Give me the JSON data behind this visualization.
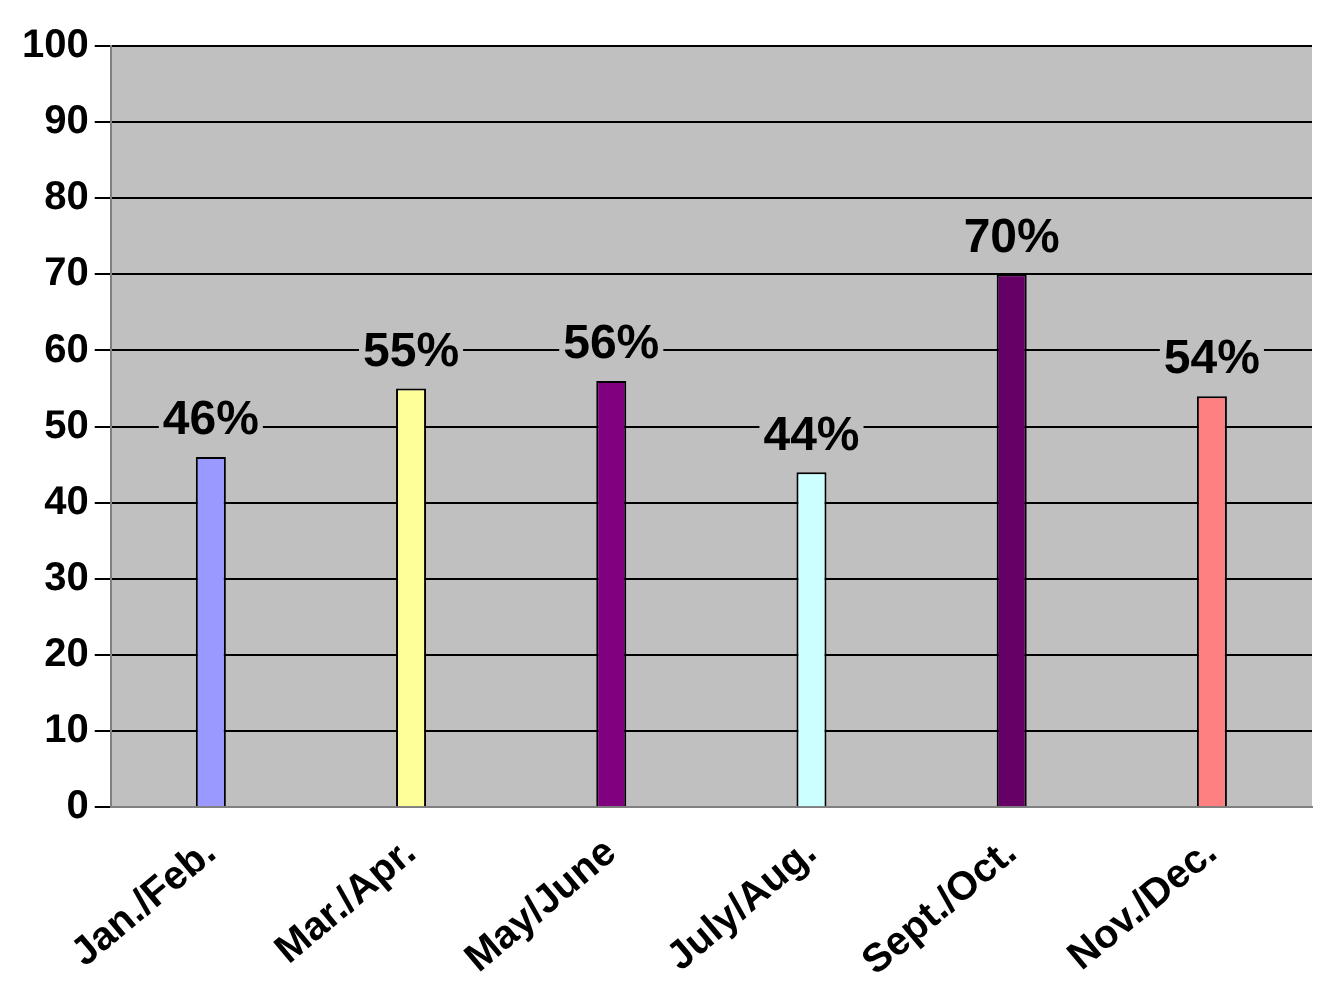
{
  "chart_data": {
    "type": "bar",
    "categories": [
      "Jan./Feb.",
      "Mar./Apr.",
      "May/June",
      "July/Aug.",
      "Sept./Oct.",
      "Nov./Dec."
    ],
    "values": [
      46,
      55,
      56,
      44,
      70,
      54
    ],
    "colors": [
      "#9999ff",
      "#ffff99",
      "#800080",
      "#ccffff",
      "#660066",
      "#ff8080"
    ],
    "value_labels": [
      "46%",
      "55%",
      "56%",
      "44%",
      "70%",
      "54%"
    ],
    "ylim": [
      0,
      100
    ],
    "yticks": [
      0,
      10,
      20,
      30,
      40,
      50,
      60,
      70,
      80,
      90,
      100
    ],
    "grid": "y",
    "legend": false
  }
}
